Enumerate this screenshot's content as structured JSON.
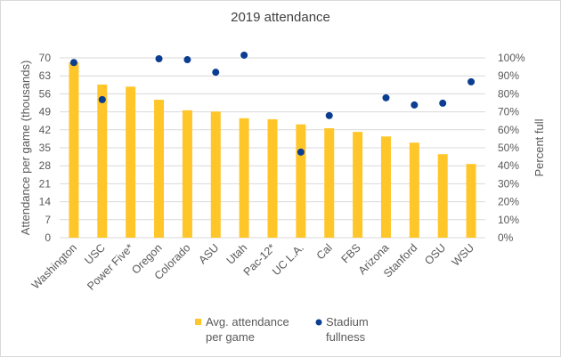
{
  "chart_data": {
    "type": "bar",
    "title": "2019 attendance",
    "xlabel": "",
    "ylabel": "Attendance per game (thousands)",
    "y2label": "Percent full",
    "ylim": [
      0,
      70
    ],
    "y2lim": [
      0,
      100
    ],
    "yticks": [
      0,
      7,
      14,
      21,
      28,
      35,
      42,
      49,
      56,
      63,
      70
    ],
    "y2ticks": [
      "0%",
      "10%",
      "20%",
      "30%",
      "40%",
      "50%",
      "60%",
      "70%",
      "80%",
      "90%",
      "100%"
    ],
    "grid": true,
    "legend_position": "bottom",
    "categories": [
      "Washington",
      "USC",
      "Power Five*",
      "Oregon",
      "Colorado",
      "ASU",
      "Utah",
      "Pac-12*",
      "UC L.A.",
      "Cal",
      "FBS",
      "Arizona",
      "Stanford",
      "OSU",
      "WSU"
    ],
    "series": [
      {
        "name": "Avg. attendance per game",
        "legend_lines": [
          "Avg. attendance",
          "per game"
        ],
        "type": "bar",
        "axis": "left",
        "color": "#FFC62A",
        "values": [
          68.3,
          59.6,
          58.8,
          53.7,
          49.6,
          49.1,
          46.5,
          46.1,
          44.1,
          42.6,
          41.2,
          39.4,
          37.0,
          32.5,
          28.7
        ]
      },
      {
        "name": "Stadium fullness",
        "legend_lines": [
          "Stadium",
          "fullness"
        ],
        "type": "scatter",
        "axis": "right",
        "color": "#0B3D91",
        "values": [
          97.4,
          76.8,
          null,
          99.5,
          99.0,
          92.0,
          101.5,
          null,
          47.6,
          67.9,
          null,
          77.8,
          73.8,
          74.8,
          86.7
        ]
      }
    ]
  }
}
